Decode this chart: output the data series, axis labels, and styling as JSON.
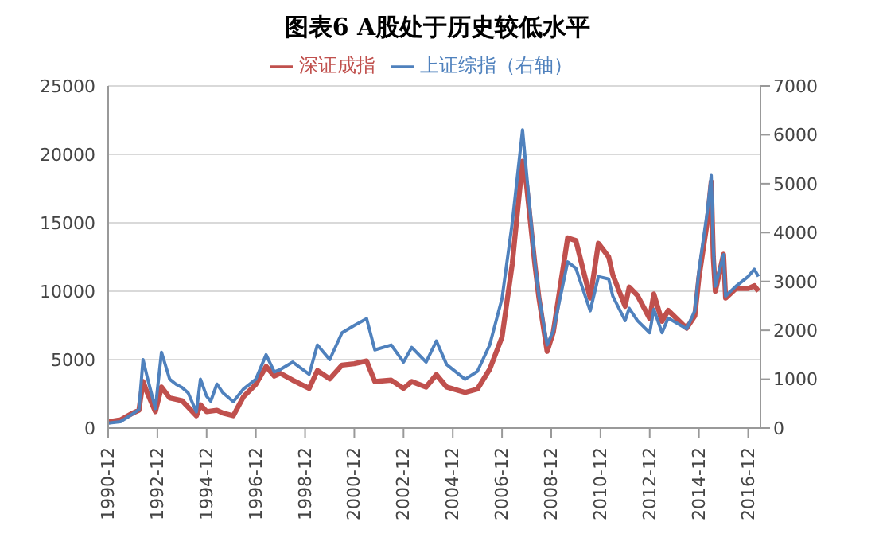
{
  "chart_data": {
    "type": "line",
    "title": "图表6 A股处于历史较低水平",
    "legend": "top",
    "grid": "y",
    "marker": "none",
    "line_style": "solid",
    "xlim": [
      "1990-12",
      "2017-06"
    ],
    "xticks": [
      "1990-12",
      "1992-12",
      "1994-12",
      "1996-12",
      "1998-12",
      "2000-12",
      "2002-12",
      "2004-12",
      "2006-12",
      "2008-12",
      "2010-12",
      "2012-12",
      "2014-12",
      "2016-12"
    ],
    "ylim": [
      0,
      25000
    ],
    "yticks": [
      0,
      5000,
      10000,
      15000,
      20000,
      25000
    ],
    "y2lim": [
      0,
      7000
    ],
    "y2ticks": [
      0,
      1000,
      2000,
      3000,
      4000,
      5000,
      6000,
      7000
    ],
    "series": [
      {
        "name": "深证成指",
        "color": "#c0504d",
        "x": [
          "1990-12",
          "1991-06",
          "1991-12",
          "1992-03",
          "1992-05",
          "1992-07",
          "1992-11",
          "1993-02",
          "1993-06",
          "1993-12",
          "1994-07",
          "1994-09",
          "1994-12",
          "1995-05",
          "1995-08",
          "1996-01",
          "1996-06",
          "1996-12",
          "1997-05",
          "1997-09",
          "1997-12",
          "1998-06",
          "1999-02",
          "1999-06",
          "1999-12",
          "2000-06",
          "2000-12",
          "2001-06",
          "2001-10",
          "2002-06",
          "2002-12",
          "2003-04",
          "2003-11",
          "2004-04",
          "2004-09",
          "2005-06",
          "2005-12",
          "2006-06",
          "2006-12",
          "2007-05",
          "2007-10",
          "2007-12",
          "2008-04",
          "2008-06",
          "2008-10",
          "2009-01",
          "2009-08",
          "2009-12",
          "2010-07",
          "2010-11",
          "2011-04",
          "2011-06",
          "2011-12",
          "2012-02",
          "2012-06",
          "2012-12",
          "2013-02",
          "2013-06",
          "2013-09",
          "2014-06",
          "2014-10",
          "2014-12",
          "2015-04",
          "2015-06",
          "2015-07",
          "2015-08",
          "2015-12",
          "2016-01",
          "2016-06",
          "2016-12",
          "2017-03",
          "2017-05"
        ],
        "values": [
          450,
          600,
          1100,
          1300,
          3400,
          2600,
          1200,
          3000,
          2200,
          2000,
          900,
          1700,
          1200,
          1300,
          1100,
          900,
          2300,
          3200,
          4500,
          3800,
          4000,
          3500,
          2900,
          4200,
          3600,
          4600,
          4700,
          4900,
          3400,
          3500,
          2900,
          3400,
          3000,
          3900,
          3000,
          2600,
          2850,
          4300,
          6650,
          12000,
          19500,
          17700,
          12000,
          9500,
          5600,
          7000,
          13900,
          13700,
          9500,
          13500,
          12500,
          11200,
          8900,
          10300,
          9700,
          8000,
          9800,
          7800,
          8600,
          7300,
          8200,
          11000,
          15000,
          18000,
          12500,
          10000,
          12700,
          9500,
          10200,
          10200,
          10400,
          10000
        ]
      },
      {
        "name": "上证综指（右轴）",
        "color": "#4f81bd",
        "axis": "y2",
        "x": [
          "1990-12",
          "1991-06",
          "1991-12",
          "1992-03",
          "1992-05",
          "1992-07",
          "1992-11",
          "1993-02",
          "1993-06",
          "1993-09",
          "1993-12",
          "1994-03",
          "1994-07",
          "1994-09",
          "1994-12",
          "1995-02",
          "1995-05",
          "1995-08",
          "1996-01",
          "1996-06",
          "1996-12",
          "1997-05",
          "1997-09",
          "1997-12",
          "1998-06",
          "1999-02",
          "1999-06",
          "1999-12",
          "2000-06",
          "2000-12",
          "2001-06",
          "2001-10",
          "2002-06",
          "2002-12",
          "2003-04",
          "2003-11",
          "2004-04",
          "2004-09",
          "2005-06",
          "2005-12",
          "2006-06",
          "2006-12",
          "2007-05",
          "2007-10",
          "2007-12",
          "2008-04",
          "2008-06",
          "2008-10",
          "2009-01",
          "2009-08",
          "2009-12",
          "2010-07",
          "2010-11",
          "2011-04",
          "2011-06",
          "2011-12",
          "2012-02",
          "2012-06",
          "2012-12",
          "2013-02",
          "2013-06",
          "2013-09",
          "2014-06",
          "2014-10",
          "2014-12",
          "2015-04",
          "2015-06",
          "2015-07",
          "2015-08",
          "2015-12",
          "2016-01",
          "2016-06",
          "2016-12",
          "2017-03",
          "2017-05"
        ],
        "values": [
          100,
          130,
          290,
          380,
          1400,
          1050,
          400,
          1550,
          1000,
          900,
          830,
          720,
          330,
          1000,
          650,
          550,
          900,
          720,
          540,
          800,
          1000,
          1500,
          1150,
          1200,
          1350,
          1100,
          1700,
          1400,
          1950,
          2100,
          2240,
          1600,
          1700,
          1350,
          1650,
          1350,
          1780,
          1300,
          1000,
          1160,
          1700,
          2650,
          4200,
          6100,
          5200,
          3400,
          2700,
          1700,
          1990,
          3400,
          3270,
          2400,
          3100,
          3050,
          2700,
          2200,
          2450,
          2200,
          1950,
          2430,
          1950,
          2250,
          2030,
          2400,
          3230,
          4400,
          5170,
          3700,
          2900,
          3550,
          2700,
          2900,
          3100,
          3250,
          3100
        ]
      }
    ]
  }
}
